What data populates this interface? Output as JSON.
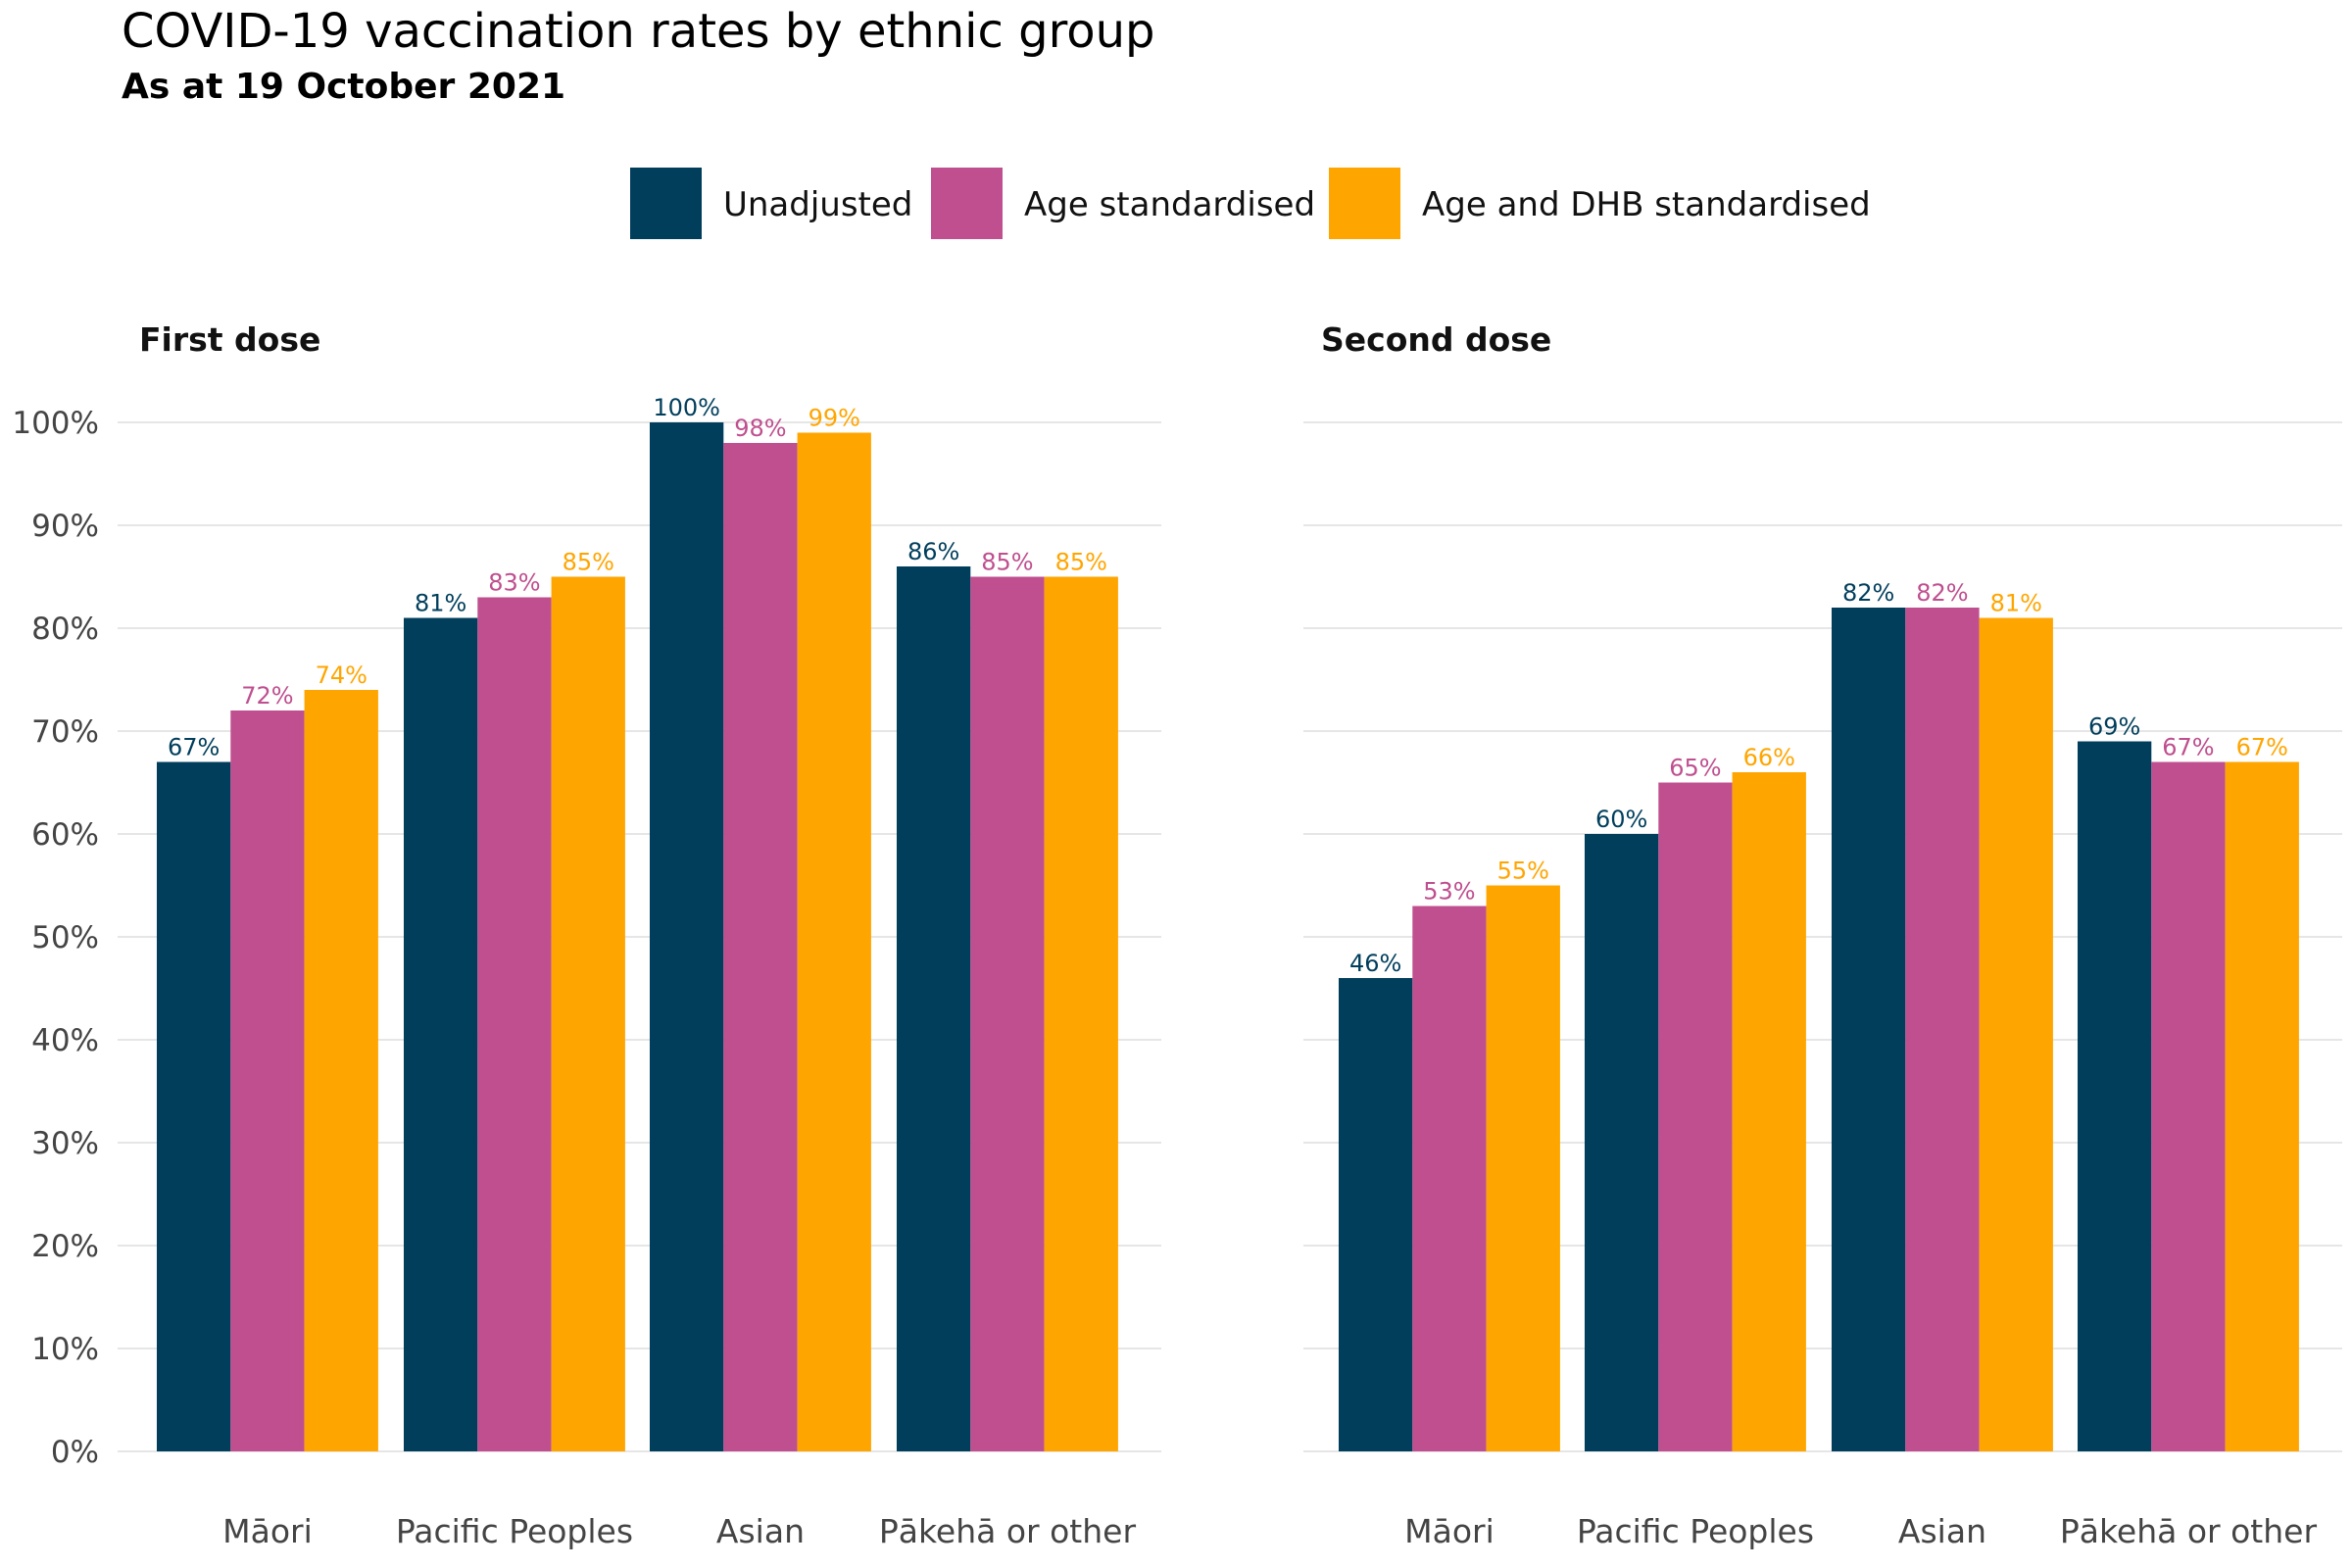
{
  "title": "COVID-19 vaccination rates by ethnic group",
  "subtitle": "As at 19 October 2021",
  "legend": [
    {
      "label": "Unadjusted",
      "color": "#003e5c"
    },
    {
      "label": "Age standardised",
      "color": "#bf4f8f"
    },
    {
      "label": "Age and DHB standardised",
      "color": "#ffa500"
    }
  ],
  "chart_data": [
    {
      "type": "bar",
      "title": "First dose",
      "categories": [
        "Māori",
        "Pacific Peoples",
        "Asian",
        "Pākehā or other"
      ],
      "ylim": [
        0,
        100
      ],
      "yticks": [
        "0%",
        "10%",
        "20%",
        "30%",
        "40%",
        "50%",
        "60%",
        "70%",
        "80%",
        "90%",
        "100%"
      ],
      "grid": true,
      "legend_position": "top",
      "series": [
        {
          "name": "Unadjusted",
          "color": "#003e5c",
          "values": [
            67,
            81,
            100,
            86
          ],
          "labels": [
            "67%",
            "81%",
            "100%",
            "86%"
          ]
        },
        {
          "name": "Age standardised",
          "color": "#bf4f8f",
          "values": [
            72,
            83,
            98,
            85
          ],
          "labels": [
            "72%",
            "83%",
            "98%",
            "85%"
          ]
        },
        {
          "name": "Age and DHB standardised",
          "color": "#ffa500",
          "values": [
            74,
            85,
            99,
            85
          ],
          "labels": [
            "74%",
            "85%",
            "99%",
            "85%"
          ]
        }
      ]
    },
    {
      "type": "bar",
      "title": "Second dose",
      "categories": [
        "Māori",
        "Pacific Peoples",
        "Asian",
        "Pākehā or other"
      ],
      "ylim": [
        0,
        100
      ],
      "grid": true,
      "series": [
        {
          "name": "Unadjusted",
          "color": "#003e5c",
          "values": [
            46,
            60,
            82,
            69
          ],
          "labels": [
            "46%",
            "60%",
            "82%",
            "69%"
          ]
        },
        {
          "name": "Age standardised",
          "color": "#bf4f8f",
          "values": [
            53,
            65,
            82,
            67
          ],
          "labels": [
            "53%",
            "65%",
            "82%",
            "67%"
          ]
        },
        {
          "name": "Age and DHB standardised",
          "color": "#ffa500",
          "values": [
            55,
            66,
            81,
            67
          ],
          "labels": [
            "55%",
            "66%",
            "81%",
            "67%"
          ]
        }
      ]
    }
  ]
}
